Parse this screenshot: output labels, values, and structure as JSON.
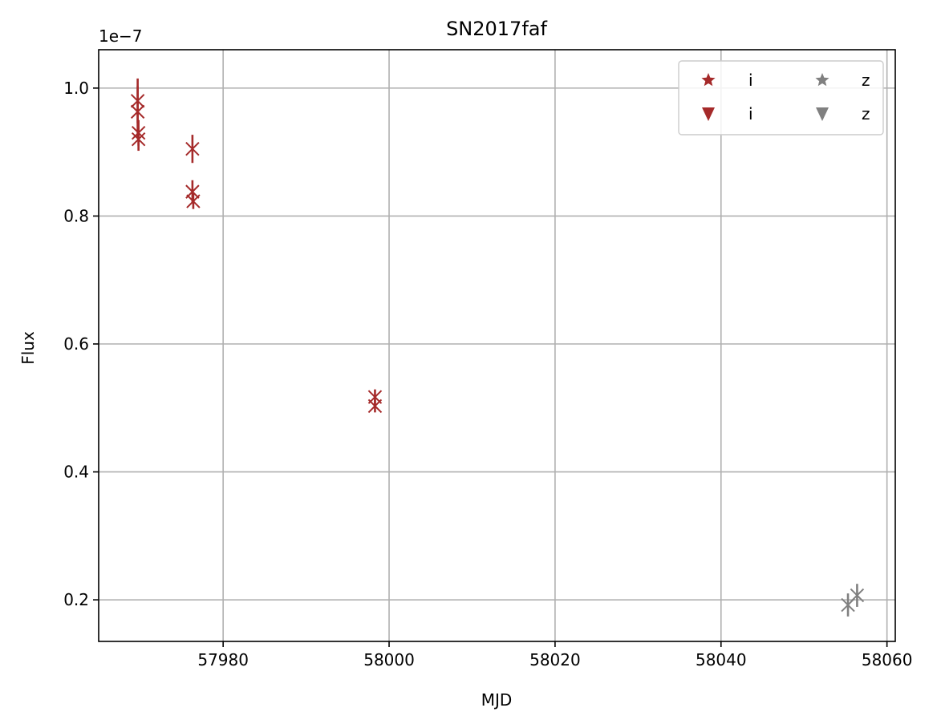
{
  "chart_data": {
    "type": "scatter",
    "title": "SN2017faf",
    "xlabel": "MJD",
    "ylabel": "Flux",
    "y_offset_text": "1e−7",
    "y_scale": 1e-07,
    "xlim": [
      57965,
      58061
    ],
    "ylim": [
      0.135,
      1.06
    ],
    "x_ticks": [
      57980,
      58000,
      58020,
      58040,
      58060
    ],
    "x_tick_labels": [
      "57980",
      "58000",
      "58020",
      "58040",
      "58060"
    ],
    "y_ticks": [
      0.2,
      0.4,
      0.6,
      0.8,
      1.0
    ],
    "y_tick_labels": [
      "0.2",
      "0.4",
      "0.6",
      "0.8",
      "1.0"
    ],
    "grid": true,
    "legend_position": "top-right",
    "legend": {
      "columns": 2,
      "entries": [
        {
          "label": "i",
          "marker": "star",
          "color": "#a52a2a"
        },
        {
          "label": "i",
          "marker": "triangle-down",
          "color": "#a52a2a"
        },
        {
          "label": "z",
          "marker": "star",
          "color": "#808080"
        },
        {
          "label": "z",
          "marker": "triangle-down",
          "color": "#808080"
        }
      ]
    },
    "series": [
      {
        "band": "i",
        "color": "#a52a2a",
        "points": [
          {
            "x": 57969.7,
            "y": 0.98,
            "err": 0.035
          },
          {
            "x": 57969.7,
            "y": 0.963,
            "err": 0.04
          },
          {
            "x": 57969.8,
            "y": 0.93,
            "err": 0.02
          },
          {
            "x": 57969.8,
            "y": 0.92,
            "err": 0.018
          },
          {
            "x": 57976.3,
            "y": 0.905,
            "err": 0.022
          },
          {
            "x": 57976.3,
            "y": 0.838,
            "err": 0.018
          },
          {
            "x": 57976.4,
            "y": 0.823,
            "err": 0.012
          },
          {
            "x": 57998.3,
            "y": 0.517,
            "err": 0.012
          },
          {
            "x": 57998.3,
            "y": 0.503,
            "err": 0.01
          }
        ]
      },
      {
        "band": "z",
        "color": "#808080",
        "points": [
          {
            "x": 58055.3,
            "y": 0.192,
            "err": 0.018
          },
          {
            "x": 58056.4,
            "y": 0.207,
            "err": 0.018
          }
        ]
      }
    ]
  }
}
